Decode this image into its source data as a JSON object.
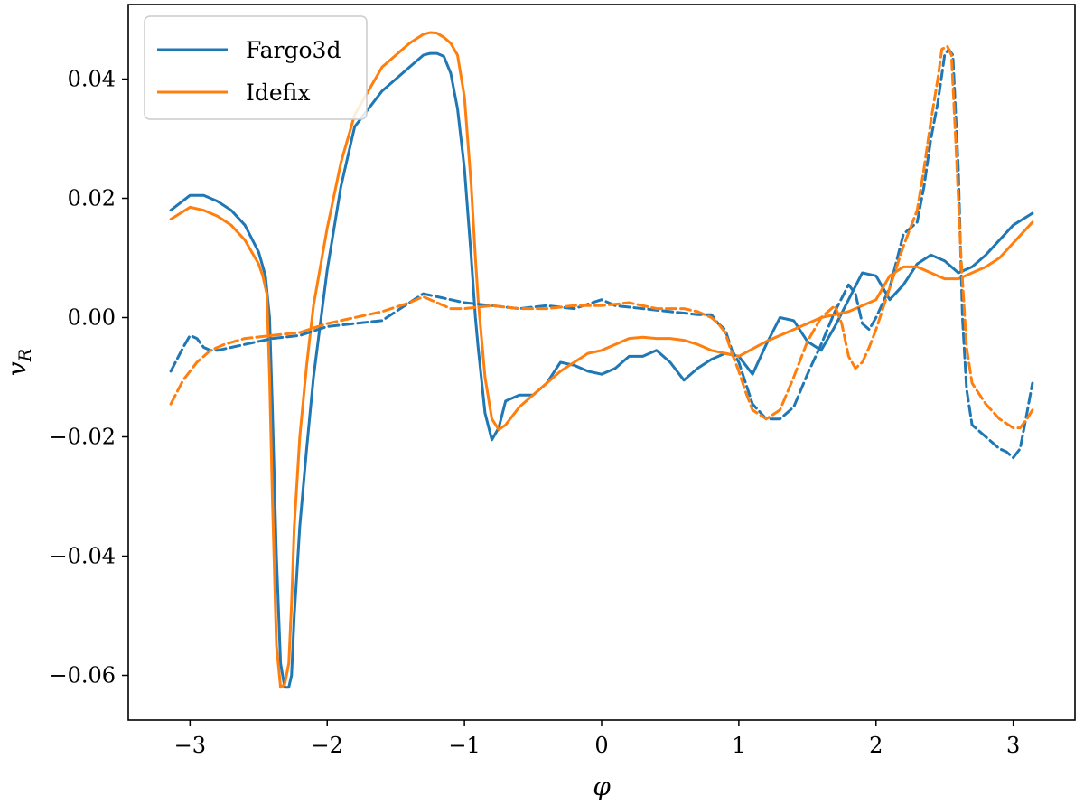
{
  "chart_data": {
    "type": "line",
    "title": "",
    "xlabel": "φ",
    "ylabel": "v_R",
    "ylabel_main": "v",
    "ylabel_sub": "R",
    "xlim": [
      -3.45,
      3.45
    ],
    "ylim": [
      -0.0675,
      0.0525
    ],
    "xticks": [
      -3,
      -2,
      -1,
      0,
      1,
      2,
      3
    ],
    "xtick_labels": [
      "−3",
      "−2",
      "−1",
      "0",
      "1",
      "2",
      "3"
    ],
    "yticks": [
      -0.06,
      -0.04,
      -0.02,
      0.0,
      0.02,
      0.04
    ],
    "ytick_labels": [
      "−0.06",
      "−0.04",
      "−0.02",
      "0.00",
      "0.02",
      "0.04"
    ],
    "grid": false,
    "legend": {
      "placement": "top-left",
      "entries": [
        "Fargo3d",
        "Idefix"
      ]
    },
    "series": [
      {
        "name": "Fargo3d",
        "color": "#1f77b4",
        "style": "solid",
        "x": [
          -3.14,
          -3.0,
          -2.9,
          -2.8,
          -2.7,
          -2.6,
          -2.5,
          -2.45,
          -2.42,
          -2.4,
          -2.37,
          -2.34,
          -2.31,
          -2.28,
          -2.26,
          -2.24,
          -2.2,
          -2.15,
          -2.1,
          -2.0,
          -1.9,
          -1.8,
          -1.6,
          -1.4,
          -1.3,
          -1.25,
          -1.2,
          -1.15,
          -1.1,
          -1.05,
          -1.0,
          -0.95,
          -0.92,
          -0.9,
          -0.85,
          -0.8,
          -0.75,
          -0.7,
          -0.6,
          -0.5,
          -0.4,
          -0.3,
          -0.2,
          -0.1,
          0.0,
          0.1,
          0.2,
          0.3,
          0.4,
          0.5,
          0.6,
          0.7,
          0.8,
          0.9,
          1.0,
          1.1,
          1.2,
          1.3,
          1.4,
          1.5,
          1.6,
          1.7,
          1.8,
          1.9,
          2.0,
          2.1,
          2.2,
          2.3,
          2.4,
          2.5,
          2.6,
          2.7,
          2.8,
          2.9,
          3.0,
          3.14
        ],
        "y": [
          0.018,
          0.0205,
          0.0205,
          0.0195,
          0.018,
          0.0155,
          0.011,
          0.007,
          0.0,
          -0.015,
          -0.04,
          -0.058,
          -0.062,
          -0.062,
          -0.06,
          -0.05,
          -0.035,
          -0.022,
          -0.01,
          0.008,
          0.022,
          0.032,
          0.038,
          0.042,
          0.044,
          0.0443,
          0.0443,
          0.0438,
          0.041,
          0.035,
          0.025,
          0.01,
          0.0,
          -0.005,
          -0.016,
          -0.0205,
          -0.0185,
          -0.014,
          -0.013,
          -0.013,
          -0.011,
          -0.0075,
          -0.008,
          -0.009,
          -0.0095,
          -0.0085,
          -0.0065,
          -0.0065,
          -0.0055,
          -0.0075,
          -0.0105,
          -0.0085,
          -0.007,
          -0.006,
          -0.0065,
          -0.0095,
          -0.0045,
          0.0,
          -0.0005,
          -0.004,
          -0.0055,
          -0.0015,
          0.003,
          0.0075,
          0.007,
          0.003,
          0.0055,
          0.009,
          0.0105,
          0.0095,
          0.0075,
          0.0085,
          0.0105,
          0.013,
          0.0155,
          0.0175
        ]
      },
      {
        "name": "Idefix",
        "color": "#ff7f0e",
        "style": "solid",
        "x": [
          -3.14,
          -3.0,
          -2.9,
          -2.8,
          -2.7,
          -2.6,
          -2.5,
          -2.47,
          -2.44,
          -2.42,
          -2.4,
          -2.37,
          -2.34,
          -2.31,
          -2.28,
          -2.26,
          -2.24,
          -2.2,
          -2.15,
          -2.1,
          -2.0,
          -1.9,
          -1.8,
          -1.6,
          -1.4,
          -1.3,
          -1.25,
          -1.2,
          -1.15,
          -1.1,
          -1.05,
          -1.0,
          -0.95,
          -0.92,
          -0.9,
          -0.85,
          -0.8,
          -0.75,
          -0.7,
          -0.6,
          -0.5,
          -0.4,
          -0.3,
          -0.2,
          -0.1,
          0.0,
          0.1,
          0.2,
          0.3,
          0.4,
          0.5,
          0.6,
          0.7,
          0.8,
          0.9,
          1.0,
          1.2,
          1.4,
          1.6,
          1.8,
          2.0,
          2.1,
          2.2,
          2.3,
          2.4,
          2.5,
          2.6,
          2.7,
          2.8,
          2.9,
          3.0,
          3.14
        ],
        "y": [
          0.0165,
          0.0185,
          0.018,
          0.017,
          0.0155,
          0.013,
          0.009,
          0.007,
          0.004,
          -0.01,
          -0.03,
          -0.055,
          -0.062,
          -0.0615,
          -0.058,
          -0.048,
          -0.035,
          -0.02,
          -0.008,
          0.002,
          0.015,
          0.026,
          0.034,
          0.042,
          0.046,
          0.0475,
          0.0478,
          0.0477,
          0.047,
          0.046,
          0.044,
          0.037,
          0.022,
          0.01,
          0.003,
          -0.01,
          -0.017,
          -0.0188,
          -0.018,
          -0.015,
          -0.013,
          -0.011,
          -0.009,
          -0.0075,
          -0.006,
          -0.0055,
          -0.0045,
          -0.0035,
          -0.0033,
          -0.0035,
          -0.0035,
          -0.0038,
          -0.0045,
          -0.0055,
          -0.006,
          -0.0065,
          -0.004,
          -0.002,
          0.0,
          0.001,
          0.003,
          0.007,
          0.0085,
          0.0085,
          0.0075,
          0.0065,
          0.0065,
          0.0075,
          0.0085,
          0.01,
          0.0125,
          0.016
        ]
      },
      {
        "name": "",
        "color": "#1f77b4",
        "style": "dashed",
        "x": [
          -3.14,
          -3.05,
          -3.0,
          -2.95,
          -2.9,
          -2.85,
          -2.8,
          -2.6,
          -2.4,
          -2.2,
          -2.0,
          -1.8,
          -1.6,
          -1.4,
          -1.3,
          -1.2,
          -1.1,
          -1.0,
          -0.8,
          -0.6,
          -0.4,
          -0.2,
          0.0,
          0.1,
          0.3,
          0.5,
          0.7,
          0.8,
          0.85,
          0.9,
          0.95,
          1.0,
          1.05,
          1.1,
          1.2,
          1.3,
          1.4,
          1.5,
          1.6,
          1.7,
          1.8,
          1.85,
          1.9,
          1.95,
          2.0,
          2.1,
          2.2,
          2.3,
          2.35,
          2.4,
          2.45,
          2.5,
          2.53,
          2.56,
          2.6,
          2.63,
          2.66,
          2.7,
          2.8,
          2.9,
          2.95,
          3.0,
          3.05,
          3.1,
          3.14
        ],
        "y": [
          -0.009,
          -0.005,
          -0.003,
          -0.0035,
          -0.005,
          -0.0055,
          -0.0055,
          -0.0045,
          -0.0035,
          -0.003,
          -0.0015,
          -0.001,
          -0.0005,
          0.0025,
          0.004,
          0.0035,
          0.003,
          0.0025,
          0.002,
          0.0015,
          0.002,
          0.0015,
          0.003,
          0.002,
          0.0015,
          0.001,
          0.0005,
          0.0005,
          -0.001,
          -0.002,
          -0.0055,
          -0.0075,
          -0.011,
          -0.0145,
          -0.017,
          -0.017,
          -0.015,
          -0.0095,
          -0.0045,
          0.001,
          0.0055,
          0.004,
          -0.001,
          -0.002,
          0.0,
          0.005,
          0.014,
          0.016,
          0.022,
          0.03,
          0.036,
          0.044,
          0.045,
          0.044,
          0.025,
          0.0,
          -0.012,
          -0.018,
          -0.02,
          -0.022,
          -0.0225,
          -0.0235,
          -0.022,
          -0.016,
          -0.011
        ]
      },
      {
        "name": "",
        "color": "#ff7f0e",
        "style": "dashed",
        "x": [
          -3.14,
          -3.05,
          -2.95,
          -2.85,
          -2.75,
          -2.6,
          -2.4,
          -2.2,
          -2.0,
          -1.8,
          -1.6,
          -1.4,
          -1.3,
          -1.2,
          -1.1,
          -1.0,
          -0.8,
          -0.6,
          -0.4,
          -0.2,
          0.0,
          0.2,
          0.4,
          0.6,
          0.7,
          0.8,
          0.85,
          0.9,
          0.95,
          1.0,
          1.05,
          1.1,
          1.2,
          1.3,
          1.4,
          1.5,
          1.6,
          1.7,
          1.75,
          1.8,
          1.85,
          1.9,
          1.95,
          2.0,
          2.1,
          2.2,
          2.3,
          2.35,
          2.4,
          2.45,
          2.48,
          2.52,
          2.55,
          2.58,
          2.62,
          2.66,
          2.7,
          2.8,
          2.9,
          3.0,
          3.05,
          3.1,
          3.14
        ],
        "y": [
          -0.0145,
          -0.0105,
          -0.0075,
          -0.0055,
          -0.0045,
          -0.0035,
          -0.003,
          -0.0025,
          -0.001,
          0.0,
          0.001,
          0.0025,
          0.0035,
          0.0025,
          0.0015,
          0.0015,
          0.002,
          0.0015,
          0.0015,
          0.002,
          0.002,
          0.0025,
          0.0015,
          0.0015,
          0.001,
          0.0,
          -0.001,
          -0.0025,
          -0.006,
          -0.009,
          -0.0125,
          -0.0155,
          -0.017,
          -0.0155,
          -0.01,
          -0.004,
          0.0,
          0.002,
          -0.001,
          -0.0065,
          -0.0085,
          -0.0075,
          -0.005,
          -0.002,
          0.005,
          0.012,
          0.018,
          0.025,
          0.033,
          0.04,
          0.045,
          0.0455,
          0.044,
          0.03,
          0.01,
          -0.005,
          -0.011,
          -0.0145,
          -0.017,
          -0.0185,
          -0.0185,
          -0.017,
          -0.0155
        ]
      }
    ]
  }
}
